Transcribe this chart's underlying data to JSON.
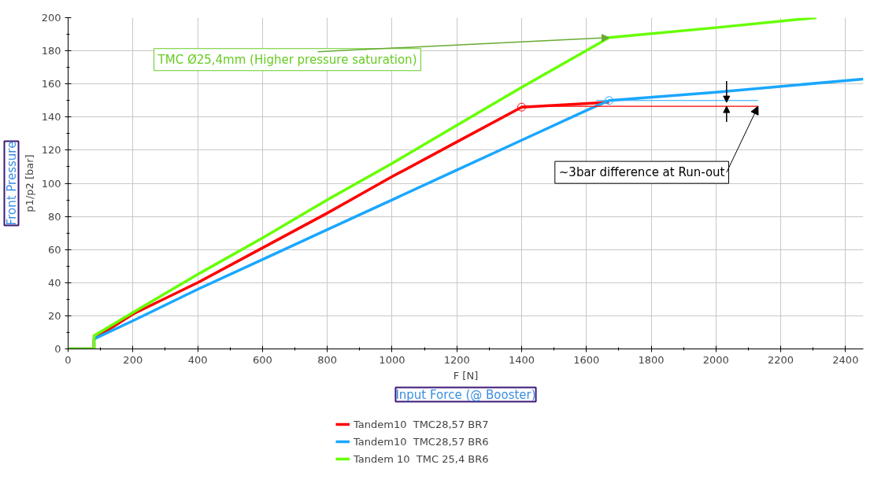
{
  "chart_data": {
    "type": "line",
    "xlabel": "F [N]",
    "ylabel": "p1/p2 [bar]",
    "xlim": [
      0,
      2455
    ],
    "ylim": [
      0,
      200
    ],
    "xticks": [
      0,
      200,
      400,
      600,
      800,
      1000,
      1200,
      1400,
      1600,
      1800,
      2000,
      2200,
      2400
    ],
    "yticks": [
      0,
      20,
      40,
      60,
      80,
      100,
      120,
      140,
      160,
      180,
      200
    ],
    "grid": true,
    "legend": "bottom",
    "series": [
      {
        "name": "Tandem10  TMC28,57 BR7",
        "color": "#ff0000",
        "x": [
          0,
          80,
          80,
          200,
          400,
          600,
          800,
          1000,
          1200,
          1400,
          1670
        ],
        "values": [
          0,
          0,
          6,
          21,
          40,
          61,
          82,
          104,
          125,
          146,
          149
        ]
      },
      {
        "name": "Tandem10  TMC28,57 BR6",
        "color": "#1aa7ff",
        "x": [
          0,
          80,
          80,
          200,
          400,
          600,
          800,
          1000,
          1200,
          1400,
          1600,
          1670,
          2000,
          2455
        ],
        "values": [
          0,
          0,
          6,
          17,
          36,
          54,
          72,
          90,
          108,
          126,
          144,
          150,
          155,
          163
        ]
      },
      {
        "name": "Tandem 10  TMC 25,4 BR6",
        "color": "#66ff00",
        "x": [
          0,
          80,
          80,
          200,
          400,
          600,
          800,
          1000,
          1200,
          1400,
          1670,
          2000,
          2310
        ],
        "values": [
          0,
          0,
          8,
          22,
          45,
          67,
          90,
          112,
          135,
          158,
          188,
          194,
          200
        ]
      },
      {
        "color": "#ff0000",
        "x": [
          1400,
          2130
        ],
        "values": [
          146.5,
          146.5
        ]
      },
      {
        "color": "#1aa7ff",
        "x": [
          1630,
          2130
        ],
        "values": [
          150,
          150
        ]
      },
      {
        "type": "scatter",
        "marker": "circle",
        "color": "#ff0000",
        "x": [
          1400
        ],
        "values": [
          146
        ]
      },
      {
        "type": "scatter",
        "marker": "circle",
        "color": "#1aa7ff",
        "x": [
          1670
        ],
        "values": [
          150
        ]
      }
    ],
    "annotations": [
      {
        "text": "TMC Ø25,4mm (Higher pressure saturation)",
        "x": 1670,
        "y": 188
      },
      {
        "text": "~3bar difference at Run-out",
        "x": 2130,
        "y": 146.5
      },
      "Front Pressure",
      "Input Force (@ Booster)"
    ]
  }
}
